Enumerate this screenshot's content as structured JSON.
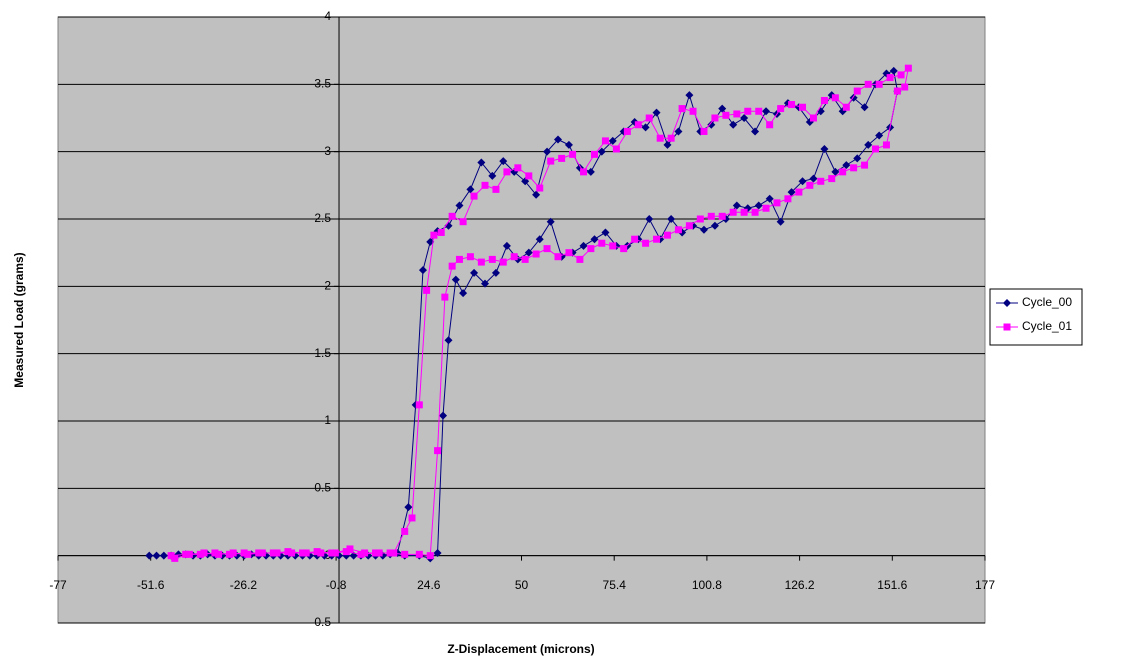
{
  "chart_data": {
    "type": "scatter",
    "x_label": "Z-Displacement (microns)",
    "y_label": "Measured Load (grams)",
    "xlim": [
      -77,
      177
    ],
    "xticks": [
      -77,
      -51.6,
      -26.2,
      -0.8,
      24.6,
      50,
      75.4,
      100.8,
      126.2,
      151.6,
      177
    ],
    "ylim": [
      -0.5,
      4
    ],
    "yticks": [
      -0.5,
      0,
      0.5,
      1,
      1.5,
      2,
      2.5,
      3,
      3.5,
      4
    ],
    "grid": true,
    "legend": "right",
    "background": "#c0c0c0",
    "series": [
      {
        "name": "Cycle_00",
        "color": "#000080",
        "marker": "diamond",
        "x": [
          -52,
          -48,
          -44,
          -40,
          -36,
          -32,
          -28,
          -24,
          -20,
          -16,
          -12,
          -8,
          -4,
          0,
          4,
          8,
          12,
          16,
          19,
          21,
          23,
          25,
          27,
          30,
          33,
          36,
          39,
          42,
          45,
          48,
          51,
          54,
          57,
          60,
          63,
          66,
          69,
          72,
          75,
          78,
          81,
          84,
          87,
          90,
          93,
          96,
          99,
          102,
          105,
          108,
          111,
          114,
          117,
          120,
          123,
          126,
          129,
          132,
          135,
          138,
          141,
          144,
          147,
          150,
          152,
          153,
          151,
          148,
          145,
          142,
          139,
          136,
          133,
          130,
          127,
          124,
          121,
          118,
          115,
          112,
          109,
          106,
          103,
          100,
          97,
          94,
          91,
          88,
          85,
          82,
          79,
          76,
          73,
          70,
          67,
          64,
          61,
          58,
          55,
          52,
          49,
          46,
          43,
          40,
          37,
          34,
          32,
          30,
          28.5,
          27,
          25,
          22,
          18,
          14,
          10,
          6,
          2,
          -2,
          -6,
          -10,
          -14,
          -18,
          -22,
          -26,
          -30,
          -34,
          -38,
          -42,
          -46,
          -50
        ],
        "values": [
          0,
          0,
          0.01,
          0,
          0.01,
          0,
          0,
          0.01,
          0,
          0,
          0,
          0,
          0,
          0,
          0,
          0,
          0,
          0.02,
          0.36,
          1.12,
          2.12,
          2.33,
          2.41,
          2.45,
          2.6,
          2.72,
          2.92,
          2.82,
          2.93,
          2.85,
          2.78,
          2.68,
          3.0,
          3.09,
          3.05,
          2.88,
          2.85,
          3.0,
          3.08,
          3.15,
          3.22,
          3.18,
          3.29,
          3.05,
          3.15,
          3.42,
          3.15,
          3.2,
          3.32,
          3.2,
          3.25,
          3.15,
          3.3,
          3.28,
          3.36,
          3.33,
          3.22,
          3.3,
          3.42,
          3.3,
          3.4,
          3.33,
          3.5,
          3.58,
          3.6,
          3.45,
          3.18,
          3.12,
          3.05,
          2.95,
          2.9,
          2.85,
          3.02,
          2.8,
          2.78,
          2.7,
          2.48,
          2.65,
          2.6,
          2.58,
          2.6,
          2.5,
          2.45,
          2.42,
          2.45,
          2.4,
          2.5,
          2.35,
          2.5,
          2.35,
          2.3,
          2.3,
          2.4,
          2.35,
          2.3,
          2.25,
          2.22,
          2.48,
          2.35,
          2.25,
          2.2,
          2.3,
          2.1,
          2.02,
          2.1,
          1.95,
          2.05,
          1.6,
          1.04,
          0.02,
          -0.02,
          0,
          0,
          0.01,
          0,
          0,
          0,
          0,
          0,
          0,
          0,
          0,
          0,
          0,
          0,
          0,
          0,
          0.01,
          0,
          0
        ]
      },
      {
        "name": "Cycle_01",
        "color": "#ff00ff",
        "marker": "square",
        "x": [
          -45,
          -41,
          -37,
          -33,
          -29,
          -25,
          -21,
          -17,
          -13,
          -9,
          -5,
          -1,
          3,
          7,
          11,
          15,
          18,
          20,
          22,
          24,
          26,
          28,
          31,
          34,
          37,
          40,
          43,
          46,
          49,
          52,
          55,
          58,
          61,
          64,
          67,
          70,
          73,
          76,
          79,
          82,
          85,
          88,
          91,
          94,
          97,
          100,
          103,
          106,
          109,
          112,
          115,
          118,
          121,
          124,
          127,
          130,
          133,
          136,
          139,
          142,
          145,
          148,
          151,
          154,
          156,
          155,
          153,
          150,
          147,
          144,
          141,
          138,
          135,
          132,
          129,
          126,
          123,
          120,
          117,
          114,
          111,
          108,
          105,
          102,
          99,
          96,
          93,
          90,
          87,
          84,
          81,
          78,
          75,
          72,
          69,
          66,
          63,
          60,
          57,
          54,
          51,
          48,
          45,
          42,
          39,
          36,
          33,
          31,
          29,
          27,
          25,
          22,
          18,
          14,
          10,
          6,
          2,
          -2,
          -6,
          -10,
          -14,
          -18,
          -22,
          -26,
          -30,
          -34,
          -38,
          -42,
          -46
        ],
        "values": [
          -0.02,
          0.01,
          0.02,
          0.01,
          0.02,
          0.01,
          0.02,
          0.02,
          0.02,
          0.02,
          0.02,
          0.02,
          0.05,
          0.02,
          0.02,
          0.02,
          0.18,
          0.28,
          1.12,
          1.97,
          2.38,
          2.4,
          2.52,
          2.48,
          2.67,
          2.75,
          2.72,
          2.85,
          2.88,
          2.82,
          2.73,
          2.93,
          2.95,
          2.98,
          2.85,
          2.98,
          3.08,
          3.02,
          3.15,
          3.2,
          3.25,
          3.1,
          3.1,
          3.32,
          3.3,
          3.15,
          3.25,
          3.27,
          3.28,
          3.3,
          3.3,
          3.2,
          3.32,
          3.35,
          3.33,
          3.25,
          3.38,
          3.4,
          3.33,
          3.45,
          3.5,
          3.5,
          3.55,
          3.57,
          3.62,
          3.48,
          3.45,
          3.05,
          3.02,
          2.9,
          2.88,
          2.85,
          2.8,
          2.78,
          2.75,
          2.7,
          2.65,
          2.62,
          2.58,
          2.55,
          2.55,
          2.55,
          2.52,
          2.52,
          2.5,
          2.45,
          2.42,
          2.38,
          2.35,
          2.32,
          2.35,
          2.28,
          2.3,
          2.32,
          2.28,
          2.2,
          2.25,
          2.22,
          2.28,
          2.24,
          2.2,
          2.22,
          2.18,
          2.2,
          2.18,
          2.22,
          2.2,
          2.15,
          1.92,
          0.78,
          0,
          0.01,
          0.01,
          0.02,
          0.02,
          0.01,
          0.03,
          0.02,
          0.03,
          0.02,
          0.03,
          0.02,
          0.02,
          0.02,
          0.01,
          0.02,
          0.01,
          0.01,
          0
        ]
      }
    ]
  }
}
